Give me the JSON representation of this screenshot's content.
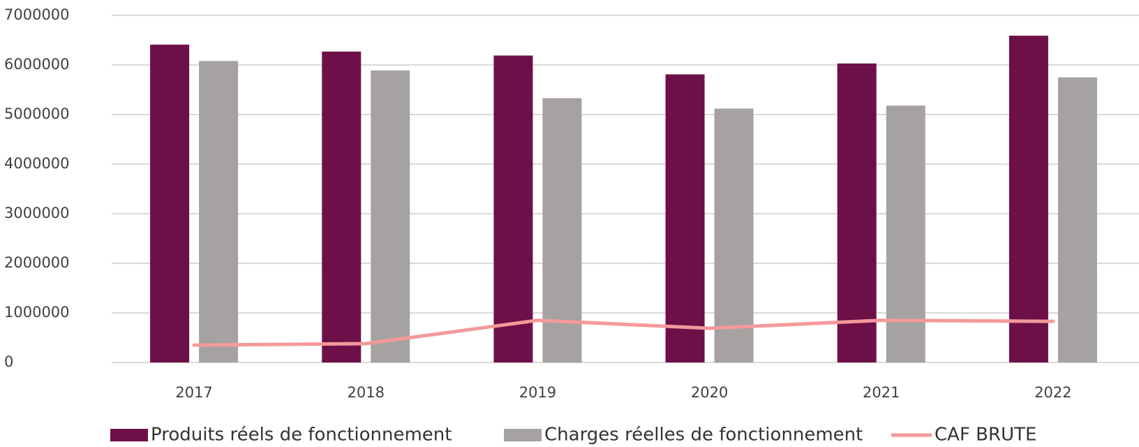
{
  "chart_data": {
    "type": "bar",
    "categories": [
      "2017",
      "2018",
      "2019",
      "2020",
      "2021",
      "2022"
    ],
    "series": [
      {
        "name": "Produits réels de fonctionnement",
        "color": "#6d1048",
        "values": [
          6410000,
          6270000,
          6190000,
          5810000,
          6030000,
          6590000
        ]
      },
      {
        "name": "Charges réelles de fonctionnement",
        "color": "#a6a2a1",
        "values": [
          6080000,
          5890000,
          5330000,
          5120000,
          5180000,
          5750000
        ]
      },
      {
        "name": "CAF BRUTE",
        "color": "#f4999a",
        "type": "line",
        "values": [
          350000,
          380000,
          850000,
          690000,
          850000,
          830000
        ]
      }
    ],
    "ylim": [
      0,
      7000000
    ],
    "yticks": [
      0,
      1000000,
      2000000,
      3000000,
      4000000,
      5000000,
      6000000,
      7000000
    ],
    "grid": true,
    "legend": "bottom"
  }
}
